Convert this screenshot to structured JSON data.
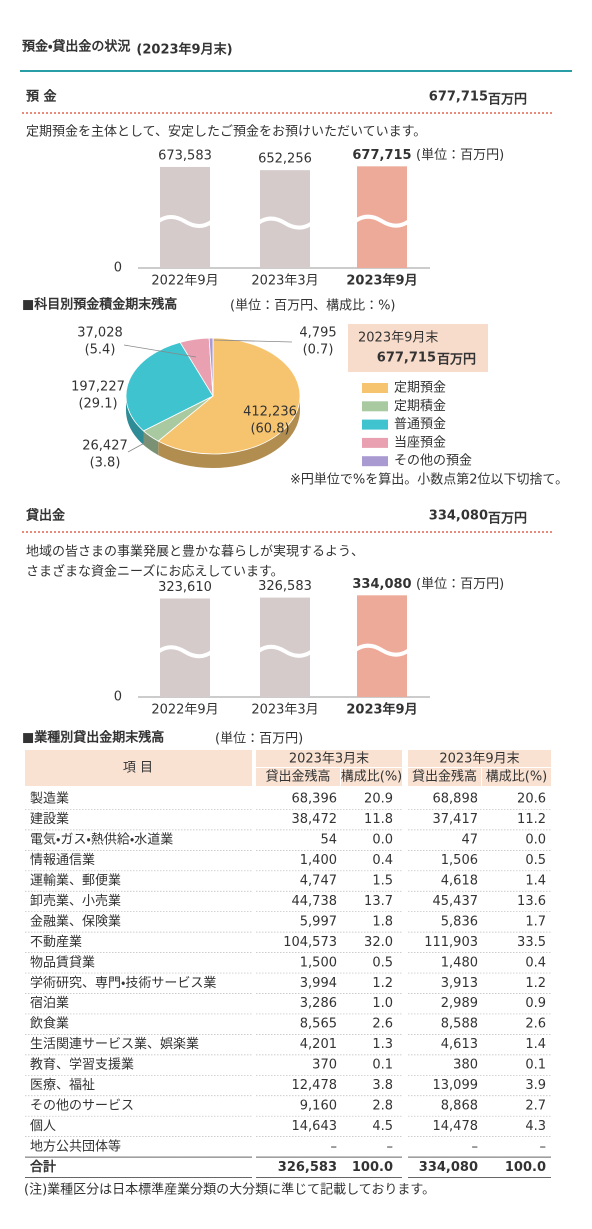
{
  "header": {
    "title": "預金・貸出金の状況",
    "note": "(2023年9月末)"
  },
  "deposits": {
    "heading": "預 金",
    "total": "677,715",
    "total_unit": "百万円",
    "description": "定期預金を主体として、安定したご預金をお預けいただいています。",
    "chart": {
      "type": "bar",
      "categories": [
        "2022年9月",
        "2023年3月",
        "2023年9月"
      ],
      "values": [
        673583,
        652256,
        677715
      ],
      "value_labels": [
        "673,583",
        "652,256",
        "677,715"
      ],
      "colors": [
        "#d6cbcb",
        "#d6cbcb",
        "#eeaa98"
      ],
      "highlight": 2,
      "unit_note": "(単位：百万円)",
      "ylim": [
        0,
        700000
      ],
      "yticks": [
        0
      ],
      "axis_break": true
    }
  },
  "deposit_breakdown": {
    "title": "■科目別預金積金期末残高",
    "unit_note": "(単位：百万円、構成比：%)",
    "chart": {
      "type": "pie",
      "categories": [
        "定期預金",
        "定期積金",
        "普通預金",
        "当座預金",
        "その他の預金"
      ],
      "values": [
        412236,
        26427,
        197227,
        37028,
        4795
      ],
      "value_labels": [
        "412,236",
        "26,427",
        "197,227",
        "37,028",
        "4,795"
      ],
      "shares": [
        60.8,
        3.8,
        29.1,
        5.4,
        0.7
      ],
      "share_labels": [
        "(60.8)",
        "(3.8)",
        "(29.1)",
        "(5.4)",
        "(0.7)"
      ],
      "colors": [
        "#f6c46f",
        "#a9c9a1",
        "#3ec3cf",
        "#e9a1b2",
        "#a99bd1"
      ]
    },
    "total_box": {
      "date": "2023年9月末",
      "total": "677,715",
      "unit": "百万円"
    },
    "note": "※円単位で%を算出。小数点第2位以下切捨て。"
  },
  "loans": {
    "heading": "貸出金",
    "total": "334,080",
    "total_unit": "百万円",
    "description": [
      "地域の皆さまの事業発展と豊かな暮らしが実現するよう、",
      "さまざまな資金ニーズにお応えしています。"
    ],
    "chart": {
      "type": "bar",
      "categories": [
        "2022年9月",
        "2023年3月",
        "2023年9月"
      ],
      "values": [
        323610,
        326583,
        334080
      ],
      "value_labels": [
        "323,610",
        "326,583",
        "334,080"
      ],
      "colors": [
        "#d6cbcb",
        "#d6cbcb",
        "#eeaa98"
      ],
      "highlight": 2,
      "unit_note": "(単位：百万円)",
      "ylim": [
        0,
        345000
      ],
      "yticks": [
        0
      ],
      "axis_break": true
    }
  },
  "loan_breakdown": {
    "title": "■業種別貸出金期末残高",
    "unit_note": "(単位：百万円)",
    "table": {
      "item_header": "項 目",
      "periods": [
        "2023年3月末",
        "2023年9月末"
      ],
      "columns": [
        "貸出金残高",
        "構成比(%)",
        "貸出金残高",
        "構成比(%)"
      ],
      "rows": [
        [
          "製造業",
          "68,396",
          "20.9",
          "68,898",
          "20.6"
        ],
        [
          "建設業",
          "38,472",
          "11.8",
          "37,417",
          "11.2"
        ],
        [
          "電気・ガス・熱供給・水道業",
          "54",
          "0.0",
          "47",
          "0.0"
        ],
        [
          "情報通信業",
          "1,400",
          "0.4",
          "1,506",
          "0.5"
        ],
        [
          "運輸業、郵便業",
          "4,747",
          "1.5",
          "4,618",
          "1.4"
        ],
        [
          "卸売業、小売業",
          "44,738",
          "13.7",
          "45,437",
          "13.6"
        ],
        [
          "金融業、保険業",
          "5,997",
          "1.8",
          "5,836",
          "1.7"
        ],
        [
          "不動産業",
          "104,573",
          "32.0",
          "111,903",
          "33.5"
        ],
        [
          "物品賃貸業",
          "1,500",
          "0.5",
          "1,480",
          "0.4"
        ],
        [
          "学術研究、専門・技術サービス業",
          "3,994",
          "1.2",
          "3,913",
          "1.2"
        ],
        [
          "宿泊業",
          "3,286",
          "1.0",
          "2,989",
          "0.9"
        ],
        [
          "飲食業",
          "8,565",
          "2.6",
          "8,588",
          "2.6"
        ],
        [
          "生活関連サービス業、娯楽業",
          "4,201",
          "1.3",
          "4,613",
          "1.4"
        ],
        [
          "教育、学習支援業",
          "370",
          "0.1",
          "380",
          "0.1"
        ],
        [
          "医療、福祉",
          "12,478",
          "3.8",
          "13,099",
          "3.9"
        ],
        [
          "その他のサービス",
          "9,160",
          "2.8",
          "8,868",
          "2.7"
        ],
        [
          "個人",
          "14,643",
          "4.5",
          "14,478",
          "4.3"
        ],
        [
          "地方公共団体等",
          "–",
          "–",
          "–",
          "–"
        ],
        [
          "合計",
          "326,583",
          "100.0",
          "334,080",
          "100.0"
        ]
      ]
    },
    "note": "(注)業種区分は日本標準産業分類の大分類に準じて記載しております。"
  }
}
